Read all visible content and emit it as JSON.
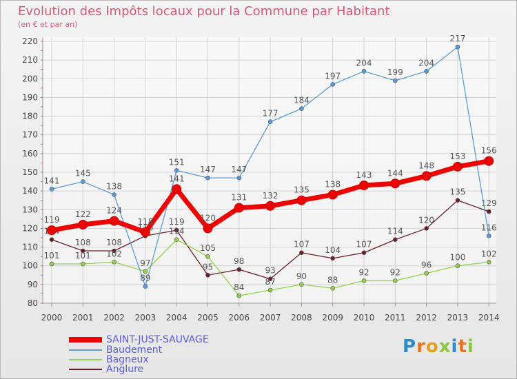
{
  "title": "Evolution des Impôts locaux pour la Commune par Habitant",
  "subtitle": "(en € et par an)",
  "logo": {
    "text": "Proxiti"
  },
  "chart_data": {
    "type": "line",
    "title": "Evolution des Impôts locaux pour la Commune par Habitant",
    "subtitle": "(en € et par an)",
    "categories": [
      "2000",
      "2001",
      "2002",
      "2003",
      "2004",
      "2005",
      "2006",
      "2007",
      "2008",
      "2009",
      "2010",
      "2011",
      "2012",
      "2013",
      "2014"
    ],
    "ylim": [
      80,
      220
    ],
    "yticks": [
      80,
      90,
      100,
      110,
      120,
      130,
      140,
      150,
      160,
      170,
      180,
      190,
      200,
      210,
      220
    ],
    "grid": true,
    "legend_position": "bottom-left",
    "series": [
      {
        "name": "SAINT-JUST-SAUVAGE",
        "color": "#ee0000",
        "values": [
          119,
          122,
          124,
          118,
          141,
          120,
          131,
          132,
          135,
          138,
          143,
          144,
          148,
          153,
          156
        ]
      },
      {
        "name": "Baudement",
        "color": "#5b9bd5",
        "values": [
          141,
          145,
          138,
          89,
          151,
          147,
          147,
          177,
          184,
          197,
          204,
          199,
          204,
          217,
          116
        ]
      },
      {
        "name": "Bagneux",
        "color": "#92d050",
        "values": [
          101,
          101,
          102,
          97,
          114,
          105,
          84,
          87,
          90,
          88,
          92,
          92,
          96,
          100,
          102
        ]
      },
      {
        "name": "Anglure",
        "color": "#6b1e2a",
        "values": [
          114,
          108,
          108,
          116,
          119,
          95,
          98,
          93,
          107,
          104,
          107,
          114,
          120,
          135,
          129
        ]
      }
    ]
  }
}
